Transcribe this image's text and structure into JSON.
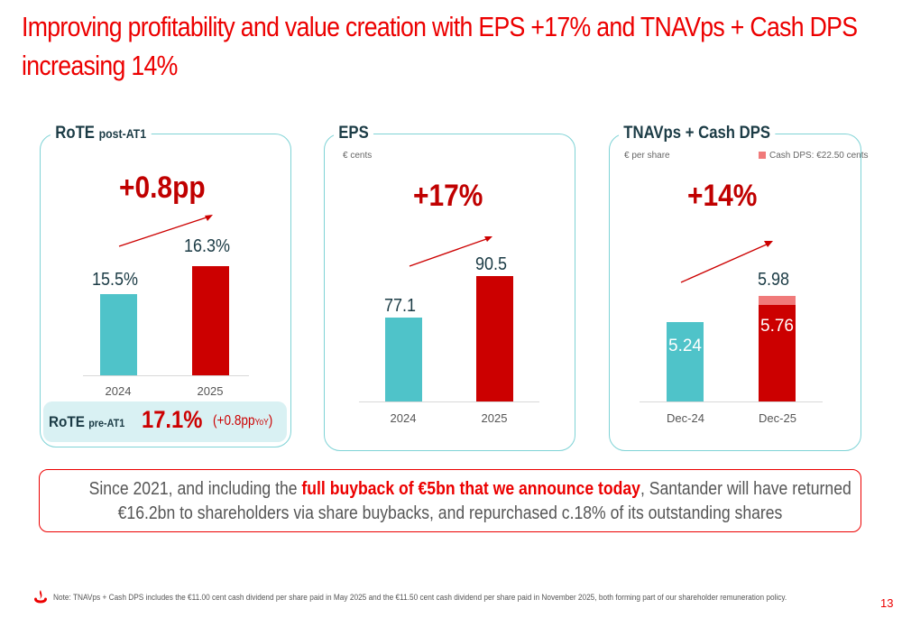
{
  "header": {
    "title_line1": "Improving profitability and value creation with EPS +17% and TNAVps + Cash DPS",
    "title_line2": "increasing 14%"
  },
  "rote": {
    "title": "RoTE",
    "title_suffix": "post-AT1",
    "change": "+0.8pp",
    "categories": [
      "2024",
      "2025"
    ],
    "value_labels": [
      "15.5%",
      "16.3%"
    ],
    "values": [
      15.5,
      16.3
    ],
    "pre_label": "RoTE",
    "pre_suffix": "pre-AT1",
    "pre_value": "17.1%",
    "pre_change_open": "(+0.8pp",
    "pre_change_yoy": "YoY",
    "pre_change_close": ")"
  },
  "eps": {
    "title": "EPS",
    "unit": "€ cents",
    "change": "+17%",
    "categories": [
      "2024",
      "2025"
    ],
    "value_labels": [
      "77.1",
      "90.5"
    ],
    "values": [
      77.1,
      90.5
    ]
  },
  "tnav": {
    "title": "TNAVps + Cash DPS",
    "unit": "€ per share",
    "legend": "Cash DPS: €22.50 cents",
    "change": "+14%",
    "categories": [
      "Dec-24",
      "Dec-25"
    ],
    "value_labels": [
      "5.24",
      "5.76"
    ],
    "total_label": "5.98",
    "values": [
      5.24,
      5.76
    ],
    "cash_dps": 0.225
  },
  "info": {
    "part1": "Since 2021, and including the ",
    "highlight": "full buyback of €5bn that we announce today",
    "part2": ", Santander will have returned",
    "line2": "€16.2bn to shareholders via share buybacks, and repurchased c.18% of its outstanding shares"
  },
  "footer": {
    "note": "Note: TNAVps + Cash DPS includes the €11.00 cent cash dividend per share paid in May 2025 and the €11.50 cent cash dividend per share paid in November 2025, both forming part of our shareholder remuneration policy.",
    "page_number": "13"
  },
  "colors": {
    "brand_red": "#ec0000",
    "teal": "#4fc3c9",
    "bar_red": "#cc0000",
    "pink": "#f07a7a"
  },
  "chart_data": [
    {
      "type": "bar",
      "title": "RoTE post-AT1",
      "categories": [
        "2024",
        "2025"
      ],
      "values": [
        15.5,
        16.3
      ]
    },
    {
      "type": "bar",
      "title": "EPS",
      "ylabel": "€ cents",
      "categories": [
        "2024",
        "2025"
      ],
      "values": [
        77.1,
        90.5
      ]
    },
    {
      "type": "bar",
      "title": "TNAVps + Cash DPS",
      "ylabel": "€ per share",
      "categories": [
        "Dec-24",
        "Dec-25"
      ],
      "series": [
        {
          "name": "TNAVps",
          "values": [
            5.24,
            5.76
          ]
        },
        {
          "name": "Cash DPS: €22.50 cents",
          "values": [
            0,
            0.22
          ]
        }
      ]
    }
  ]
}
